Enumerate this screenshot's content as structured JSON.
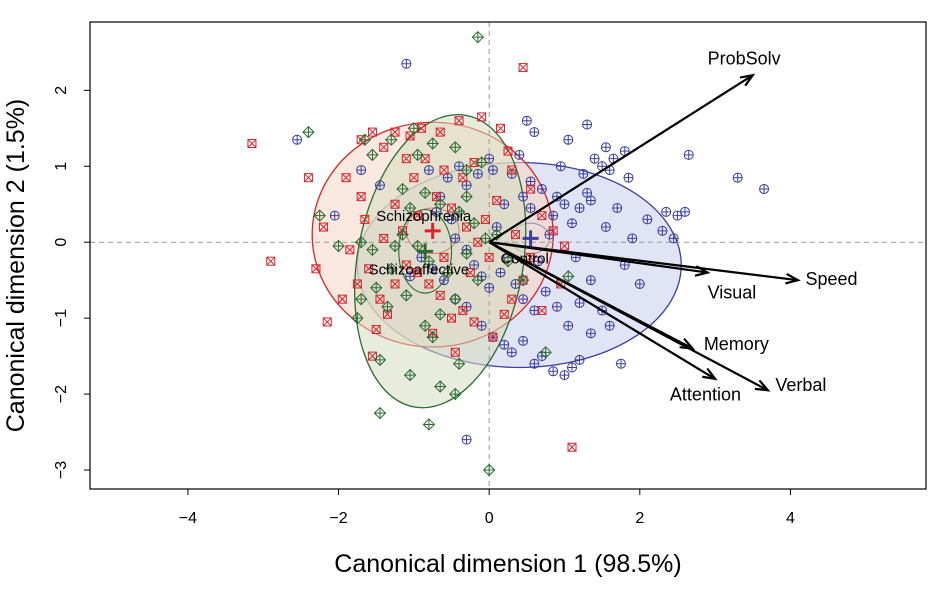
{
  "chart_data": {
    "type": "scatter",
    "title": "",
    "xlabel": "Canonical dimension 1 (98.5%)",
    "ylabel": "Canonical dimension 2 (1.5%)",
    "xlim": [
      -5.3,
      5.8
    ],
    "ylim": [
      -3.25,
      2.9
    ],
    "xticks": [
      -4,
      -2,
      0,
      2,
      4
    ],
    "yticks": [
      -3,
      -2,
      -1,
      0,
      1,
      2
    ],
    "grid": false,
    "reference_lines": {
      "x": 0,
      "y": 0
    },
    "groups": [
      {
        "name": "Control",
        "color": "#3a3fa0",
        "fill": "#c8cdec",
        "marker": "circle-plus",
        "centroid": [
          0.55,
          0.05
        ],
        "inner_ellipse": {
          "rx": 0.25,
          "ry": 0.2
        },
        "outer_ellipse": {
          "cx": 0.4,
          "cy": -0.3,
          "rx": 2.15,
          "ry": 1.35
        },
        "points": [
          [
            -1.1,
            2.35
          ],
          [
            0.5,
            1.6
          ],
          [
            0.6,
            1.45
          ],
          [
            1.3,
            1.55
          ],
          [
            1.05,
            1.35
          ],
          [
            1.4,
            1.1
          ],
          [
            1.5,
            1.0
          ],
          [
            1.55,
            1.25
          ],
          [
            1.65,
            1.1
          ],
          [
            1.8,
            1.2
          ],
          [
            1.6,
            0.95
          ],
          [
            1.85,
            0.85
          ],
          [
            2.65,
            1.15
          ],
          [
            3.3,
            0.85
          ],
          [
            3.65,
            0.7
          ],
          [
            2.35,
            0.4
          ],
          [
            2.5,
            0.35
          ],
          [
            2.6,
            0.4
          ],
          [
            2.3,
            0.15
          ],
          [
            2.1,
            0.3
          ],
          [
            1.55,
            0.2
          ],
          [
            1.7,
            0.45
          ],
          [
            1.35,
            0.55
          ],
          [
            1.3,
            0.65
          ],
          [
            1.2,
            0.45
          ],
          [
            1.1,
            0.25
          ],
          [
            1.0,
            0.5
          ],
          [
            0.9,
            0.6
          ],
          [
            0.85,
            0.35
          ],
          [
            0.7,
            0.7
          ],
          [
            0.55,
            0.8
          ],
          [
            0.45,
            0.6
          ],
          [
            0.4,
            1.15
          ],
          [
            0.3,
            0.9
          ],
          [
            0.2,
            0.5
          ],
          [
            0.1,
            0.2
          ],
          [
            0.05,
            0.95
          ],
          [
            0.0,
            1.1
          ],
          [
            -0.15,
            0.9
          ],
          [
            -0.3,
            0.75
          ],
          [
            -0.4,
            1.0
          ],
          [
            -0.55,
            0.85
          ],
          [
            -0.65,
            0.6
          ],
          [
            -0.8,
            0.95
          ],
          [
            -0.7,
            0.4
          ],
          [
            -0.5,
            0.3
          ],
          [
            -0.45,
            0.05
          ],
          [
            -0.3,
            -0.1
          ],
          [
            -0.2,
            -0.3
          ],
          [
            -0.1,
            -0.45
          ],
          [
            0.0,
            -0.6
          ],
          [
            0.15,
            -0.4
          ],
          [
            0.25,
            -0.2
          ],
          [
            0.35,
            -0.55
          ],
          [
            0.45,
            -0.75
          ],
          [
            0.6,
            -0.9
          ],
          [
            0.75,
            -0.65
          ],
          [
            0.9,
            -0.85
          ],
          [
            1.05,
            -1.1
          ],
          [
            1.2,
            -0.8
          ],
          [
            1.35,
            -1.2
          ],
          [
            1.5,
            -0.9
          ],
          [
            1.6,
            -1.1
          ],
          [
            1.75,
            -1.6
          ],
          [
            1.2,
            -1.55
          ],
          [
            1.1,
            -1.65
          ],
          [
            1.0,
            -1.75
          ],
          [
            0.85,
            -1.7
          ],
          [
            0.7,
            -1.5
          ],
          [
            0.6,
            -1.6
          ],
          [
            0.45,
            -1.3
          ],
          [
            0.3,
            -1.45
          ],
          [
            0.2,
            -1.35
          ],
          [
            0.05,
            -1.25
          ],
          [
            -0.1,
            -1.1
          ],
          [
            -0.3,
            -0.85
          ],
          [
            -0.45,
            -0.75
          ],
          [
            -0.6,
            -0.5
          ],
          [
            -0.75,
            -0.35
          ],
          [
            -0.9,
            -0.2
          ],
          [
            -1.05,
            -0.45
          ],
          [
            -0.3,
            -2.6
          ],
          [
            -1.7,
            0.95
          ],
          [
            -2.55,
            1.35
          ],
          [
            -1.45,
            0.75
          ],
          [
            -2.05,
            0.35
          ],
          [
            0.55,
            0.45
          ],
          [
            0.8,
            0.1
          ],
          [
            1.15,
            -0.2
          ],
          [
            1.35,
            -0.5
          ],
          [
            1.8,
            -0.3
          ],
          [
            2.0,
            -0.55
          ],
          [
            0.95,
            1.0
          ],
          [
            1.25,
            0.9
          ],
          [
            1.9,
            0.05
          ],
          [
            2.45,
            0.05
          ],
          [
            0.65,
            -0.25
          ]
        ]
      },
      {
        "name": "Schizophrenia",
        "color": "#d6252c",
        "fill": "#f7d5c2",
        "marker": "square-x",
        "centroid": [
          -0.75,
          0.15
        ],
        "inner_ellipse": {
          "rx": 0.35,
          "ry": 0.3
        },
        "outer_ellipse": {
          "cx": -0.75,
          "cy": 0.1,
          "rx": 1.6,
          "ry": 1.48
        },
        "points": [
          [
            0.45,
            2.3
          ],
          [
            -3.15,
            1.3
          ],
          [
            -2.9,
            -0.25
          ],
          [
            -2.3,
            -0.35
          ],
          [
            -2.15,
            -1.05
          ],
          [
            -1.55,
            -1.5
          ],
          [
            1.1,
            -2.7
          ],
          [
            -0.1,
            1.65
          ],
          [
            -0.4,
            1.6
          ],
          [
            -0.65,
            1.45
          ],
          [
            -0.9,
            1.5
          ],
          [
            -1.05,
            1.4
          ],
          [
            -1.25,
            1.45
          ],
          [
            -1.4,
            1.25
          ],
          [
            -1.55,
            1.45
          ],
          [
            -1.7,
            1.35
          ],
          [
            -1.1,
            1.1
          ],
          [
            -0.85,
            1.1
          ],
          [
            -0.6,
            0.95
          ],
          [
            -0.35,
            0.85
          ],
          [
            -0.2,
            1.05
          ],
          [
            0.15,
            1.5
          ],
          [
            0.3,
            0.95
          ],
          [
            0.55,
            0.7
          ],
          [
            0.7,
            0.35
          ],
          [
            0.85,
            0.15
          ],
          [
            1.0,
            -0.05
          ],
          [
            0.55,
            -0.2
          ],
          [
            0.45,
            -0.5
          ],
          [
            0.3,
            -0.75
          ],
          [
            0.2,
            -0.95
          ],
          [
            0.05,
            -1.25
          ],
          [
            -0.2,
            -1.05
          ],
          [
            -0.35,
            -0.9
          ],
          [
            -0.5,
            -1.0
          ],
          [
            -0.65,
            -0.7
          ],
          [
            -0.8,
            -0.55
          ],
          [
            -0.95,
            -0.4
          ],
          [
            -1.1,
            -0.3
          ],
          [
            -1.25,
            -0.55
          ],
          [
            -1.45,
            -0.75
          ],
          [
            -1.35,
            -0.95
          ],
          [
            -1.5,
            -1.15
          ],
          [
            -1.6,
            -0.35
          ],
          [
            -1.75,
            -0.55
          ],
          [
            -1.85,
            -0.1
          ],
          [
            -2.2,
            0.2
          ],
          [
            -1.65,
            0.3
          ],
          [
            -1.4,
            0.05
          ],
          [
            -1.15,
            0.15
          ],
          [
            -0.95,
            0.35
          ],
          [
            -0.7,
            0.6
          ],
          [
            -0.5,
            0.45
          ],
          [
            -0.3,
            0.2
          ],
          [
            -0.15,
            0.0
          ],
          [
            0.0,
            -0.2
          ],
          [
            0.1,
            0.55
          ],
          [
            -0.05,
            0.3
          ],
          [
            0.35,
            0.1
          ],
          [
            -1.9,
            0.85
          ],
          [
            -2.4,
            0.85
          ],
          [
            -1.25,
            0.5
          ],
          [
            -0.75,
            -1.2
          ],
          [
            -0.45,
            -1.45
          ],
          [
            -0.25,
            -0.4
          ],
          [
            0.7,
            -0.9
          ],
          [
            0.95,
            -0.55
          ],
          [
            -1.95,
            -0.75
          ],
          [
            -1.7,
            0.6
          ],
          [
            -0.6,
            -0.2
          ],
          [
            -1.0,
            0.85
          ],
          [
            0.25,
            1.2
          ]
        ]
      },
      {
        "name": "Schizoaffective",
        "color": "#2c6b32",
        "fill": "#d5dcc0",
        "marker": "diamond-plus",
        "centroid": [
          -0.85,
          -0.12
        ],
        "inner_ellipse": {
          "rx": 0.35,
          "ry": 0.55
        },
        "outer_ellipse": {
          "cx": -0.65,
          "cy": -0.25,
          "rx": 1.95,
          "ry": 1.1,
          "angle_deg": 80
        },
        "points": [
          [
            -0.15,
            2.7
          ],
          [
            -2.4,
            1.45
          ],
          [
            -1.65,
            1.35
          ],
          [
            -1.55,
            1.15
          ],
          [
            -1.3,
            1.35
          ],
          [
            -1.0,
            1.5
          ],
          [
            -0.95,
            1.15
          ],
          [
            -0.75,
            1.3
          ],
          [
            -0.45,
            1.25
          ],
          [
            -0.3,
            0.95
          ],
          [
            -0.1,
            1.05
          ],
          [
            -1.15,
            0.7
          ],
          [
            -1.05,
            0.45
          ],
          [
            -0.85,
            0.65
          ],
          [
            -0.65,
            0.5
          ],
          [
            -0.4,
            0.4
          ],
          [
            -0.2,
            0.25
          ],
          [
            -0.05,
            0.05
          ],
          [
            0.1,
            0.1
          ],
          [
            -2.25,
            0.35
          ],
          [
            -1.7,
            0.0
          ],
          [
            -1.55,
            -0.1
          ],
          [
            -1.3,
            -0.35
          ],
          [
            -1.15,
            0.1
          ],
          [
            -0.95,
            -0.05
          ],
          [
            -0.8,
            -0.25
          ],
          [
            -0.55,
            -0.4
          ],
          [
            -0.3,
            -0.15
          ],
          [
            -0.15,
            -0.5
          ],
          [
            -0.45,
            -0.75
          ],
          [
            -0.65,
            -0.95
          ],
          [
            -0.85,
            -1.1
          ],
          [
            -1.1,
            -0.7
          ],
          [
            -1.35,
            -0.85
          ],
          [
            -1.5,
            -0.6
          ],
          [
            -1.7,
            -0.75
          ],
          [
            -1.45,
            -1.55
          ],
          [
            -1.75,
            -1.0
          ],
          [
            -1.05,
            -1.75
          ],
          [
            -0.75,
            -1.25
          ],
          [
            -0.4,
            -1.6
          ],
          [
            -0.65,
            -1.9
          ],
          [
            -0.45,
            -2.0
          ],
          [
            -1.45,
            -2.25
          ],
          [
            -0.8,
            -2.4
          ],
          [
            0.0,
            -3.0
          ],
          [
            0.45,
            -0.5
          ],
          [
            0.75,
            -1.45
          ],
          [
            1.05,
            -0.45
          ],
          [
            -2.0,
            -0.05
          ],
          [
            -0.3,
            0.6
          ],
          [
            -1.25,
            -0.05
          ],
          [
            0.25,
            -0.25
          ]
        ]
      }
    ],
    "vectors": [
      {
        "name": "ProbSolv",
        "x": 3.5,
        "y": 2.2,
        "label_x": 2.9,
        "label_y": 2.4
      },
      {
        "name": "Speed",
        "x": 4.1,
        "y": -0.5,
        "label_x": 4.2,
        "label_y": -0.5
      },
      {
        "name": "Visual",
        "x": 2.9,
        "y": -0.4,
        "label_x": 2.9,
        "label_y": -0.68
      },
      {
        "name": "Memory",
        "x": 2.7,
        "y": -1.4,
        "label_x": 2.85,
        "label_y": -1.36
      },
      {
        "name": "Verbal",
        "x": 3.7,
        "y": -1.95,
        "label_x": 3.8,
        "label_y": -1.9
      },
      {
        "name": "Attention",
        "x": 3.0,
        "y": -1.8,
        "label_x": 2.4,
        "label_y": -2.02
      }
    ],
    "group_labels": [
      {
        "name": "Schizophrenia",
        "x": -1.5,
        "y": 0.33
      },
      {
        "name": "Schizoaffective",
        "x": -1.6,
        "y": -0.37
      },
      {
        "name": "Control",
        "x": 0.15,
        "y": -0.23
      }
    ]
  }
}
